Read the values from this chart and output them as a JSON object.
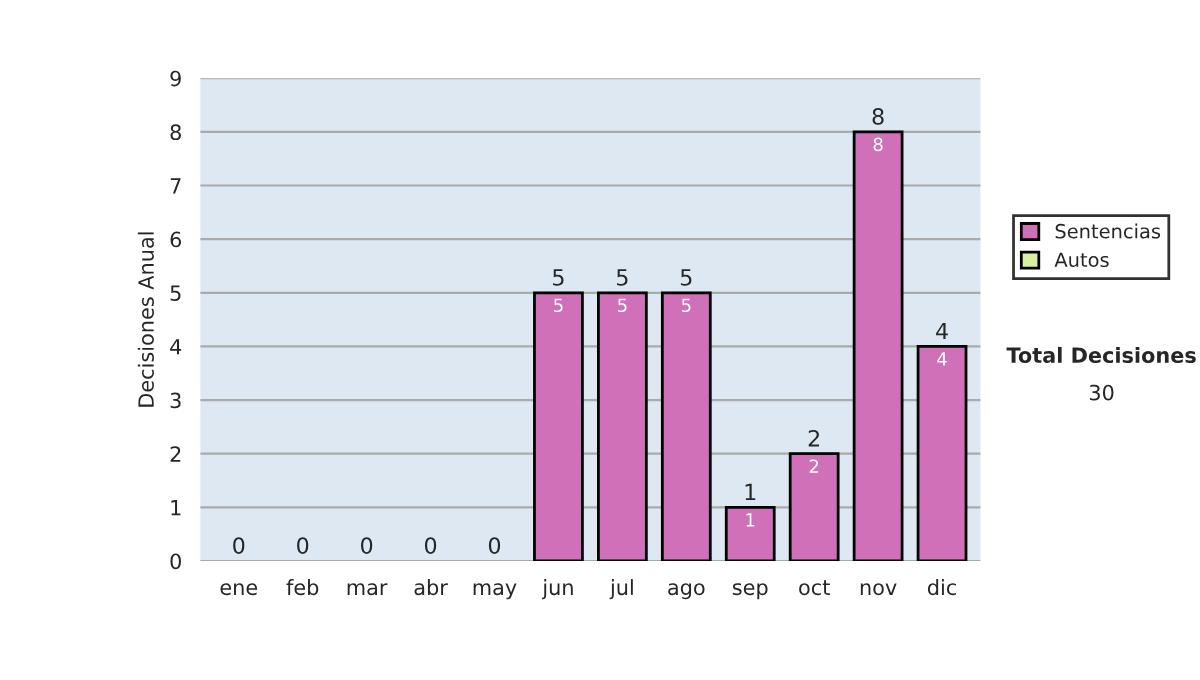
{
  "chart_data": {
    "type": "bar",
    "stacked": true,
    "ylabel": "Decisiones Anual",
    "categories": [
      "ene",
      "feb",
      "mar",
      "abr",
      "may",
      "jun",
      "jul",
      "ago",
      "sep",
      "oct",
      "nov",
      "dic"
    ],
    "series": [
      {
        "name": "Sentencias",
        "color": "#d070b8",
        "values": [
          0,
          0,
          0,
          0,
          0,
          5,
          5,
          5,
          1,
          2,
          8,
          4
        ],
        "value_labels": [
          null,
          null,
          null,
          null,
          null,
          "5",
          "5",
          "5",
          "1",
          "2",
          "8",
          "4"
        ]
      },
      {
        "name": "Autos",
        "color": "#d8f0a0",
        "values": [
          0,
          0,
          0,
          0,
          0,
          0,
          0,
          0,
          0,
          0,
          0,
          0
        ]
      }
    ],
    "totals": [
      "0",
      "0",
      "0",
      "0",
      "0",
      "5",
      "5",
      "5",
      "1",
      "2",
      "8",
      "4"
    ],
    "ylim": [
      0,
      9
    ],
    "yticks": [
      0,
      1,
      2,
      3,
      4,
      5,
      6,
      7,
      8,
      9
    ],
    "grid": "y",
    "legend": "right",
    "annotations": [
      "Total Decisiones",
      "30"
    ]
  }
}
